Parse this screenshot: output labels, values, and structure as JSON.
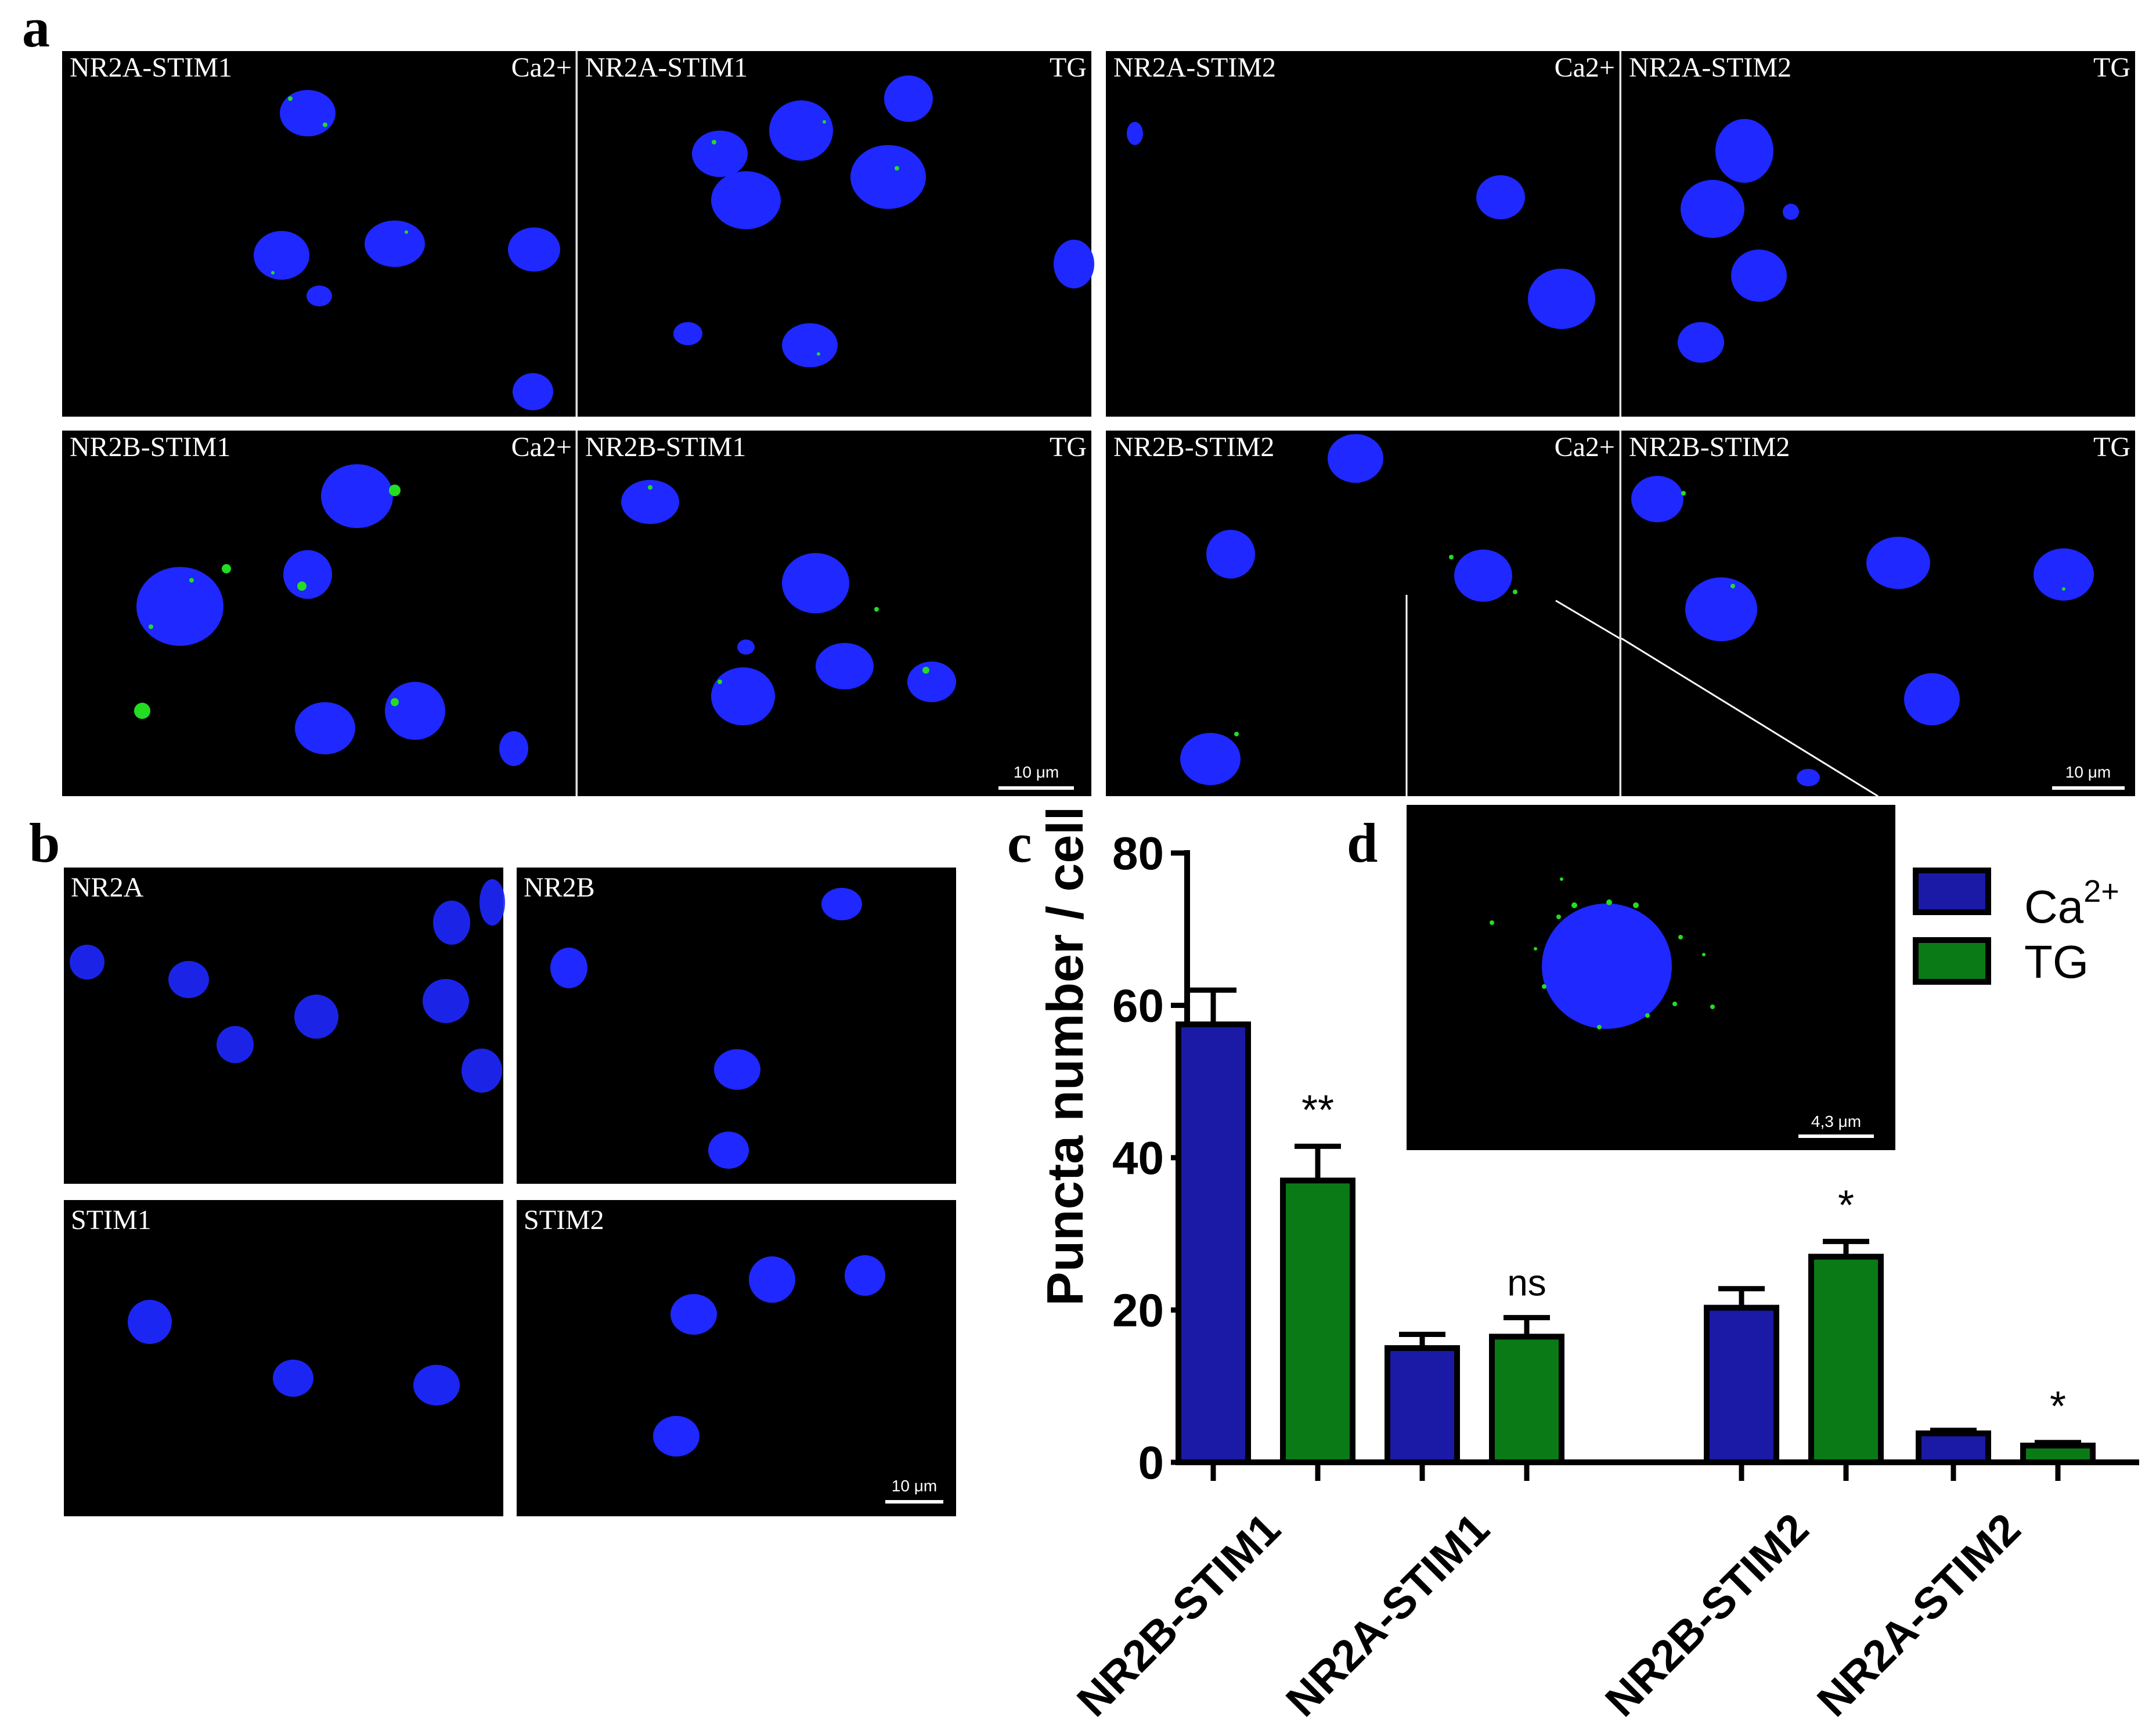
{
  "panel_labels": {
    "a": "a",
    "b": "b",
    "c": "c",
    "d": "d"
  },
  "panel_a": {
    "tiles": [
      {
        "name": "NR2A-STIM1",
        "condition": "Ca2+"
      },
      {
        "name": "NR2A-STIM1",
        "condition": "TG"
      },
      {
        "name": "NR2A-STIM2",
        "condition": "Ca2+"
      },
      {
        "name": "NR2A-STIM2",
        "condition": "TG"
      },
      {
        "name": "NR2B-STIM1",
        "condition": "Ca2+"
      },
      {
        "name": "NR2B-STIM1",
        "condition": "TG"
      },
      {
        "name": "NR2B-STIM2",
        "condition": "Ca2+"
      },
      {
        "name": "NR2B-STIM2",
        "condition": "TG"
      }
    ],
    "scale_bar": "10 μm"
  },
  "panel_b": {
    "tiles": [
      "NR2A",
      "NR2B",
      "STIM1",
      "STIM2"
    ],
    "scale_bar": "10 μm"
  },
  "panel_d": {
    "scale_bar": "4,3 μm"
  },
  "colors": {
    "nucleus": "#1e28ff",
    "puncta": "#22dd22",
    "ca_bar": "#1a1aa6",
    "tg_bar": "#0a7a16",
    "background": "#000000"
  },
  "chart_data": {
    "type": "bar",
    "categories": [
      "NR2B-STIM1",
      "NR2A-STIM1",
      "NR2B-STIM2",
      "NR2A-STIM2"
    ],
    "series": [
      {
        "name": "Ca2+",
        "values": [
          57.5,
          15,
          20.3,
          3.8
        ],
        "errors": [
          4.5,
          1.8,
          2.5,
          0.4
        ]
      },
      {
        "name": "TG",
        "values": [
          37,
          16.5,
          27,
          2.2
        ],
        "errors": [
          4.5,
          2.5,
          2.0,
          0.4
        ]
      }
    ],
    "significance": [
      "**",
      "ns",
      "*",
      "*"
    ],
    "ylabel": "Puncta number / cell",
    "ylim": [
      0,
      80
    ],
    "yticks": [
      0,
      20,
      40,
      60,
      80
    ],
    "legend": {
      "ca": "Ca",
      "ca_sup": "2+",
      "tg": "TG"
    },
    "legend_position": "top-right"
  }
}
